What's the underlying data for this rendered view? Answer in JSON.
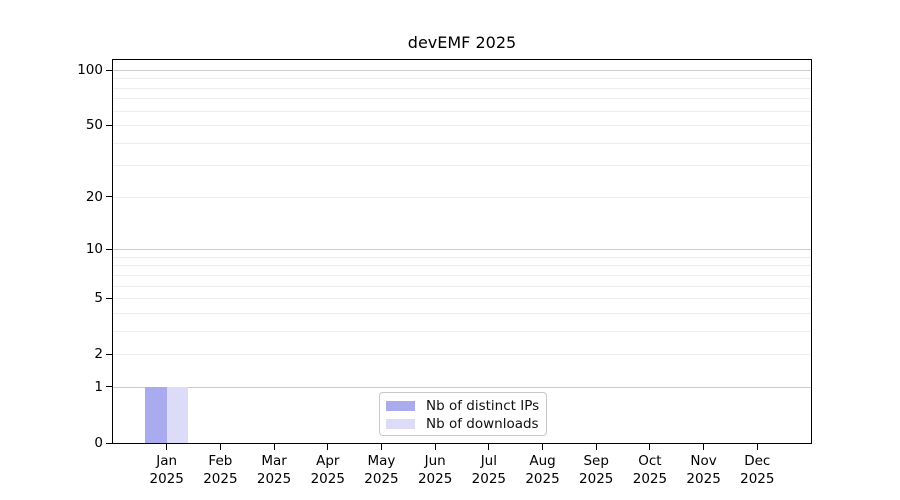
{
  "chart_data": {
    "type": "bar",
    "title": "devEMF 2025",
    "categories": [
      "Jan",
      "Feb",
      "Mar",
      "Apr",
      "May",
      "Jun",
      "Jul",
      "Aug",
      "Sep",
      "Oct",
      "Nov",
      "Dec"
    ],
    "x_sublabel": "2025",
    "series": [
      {
        "name": "Nb of distinct IPs",
        "color": "#aaaaee",
        "values": [
          1,
          0,
          0,
          0,
          0,
          0,
          0,
          0,
          0,
          0,
          0,
          0
        ]
      },
      {
        "name": "Nb of downloads",
        "color": "#dcdcf8",
        "values": [
          1,
          0,
          0,
          0,
          0,
          0,
          0,
          0,
          0,
          0,
          0,
          0
        ]
      }
    ],
    "xlabel": "",
    "ylabel": "",
    "yscale": "log10(1+x)",
    "ylim": [
      0,
      113
    ],
    "y_ticks": [
      0,
      1,
      2,
      5,
      10,
      20,
      50,
      100
    ],
    "y_gridlines_major": [
      1,
      10,
      100
    ],
    "y_gridlines_minor": [
      2,
      3,
      4,
      5,
      6,
      7,
      8,
      9,
      20,
      30,
      40,
      50,
      60,
      70,
      80,
      90
    ],
    "grid": true,
    "legend_position": "bottom-center"
  },
  "colors": {
    "background": "#ffffff",
    "axis": "#000000",
    "grid_major": "#cbcbcb",
    "grid_minor": "#ededed",
    "text": "#000000",
    "legend_border": "#c8c8c8"
  }
}
